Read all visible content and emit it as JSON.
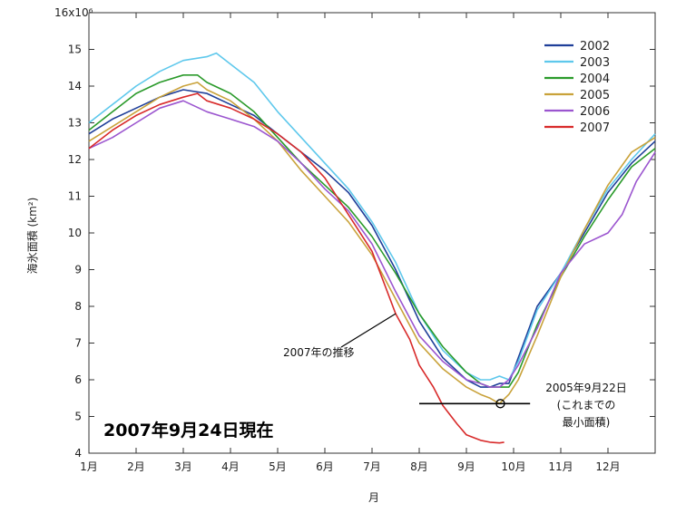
{
  "chart_data": {
    "type": "line",
    "title": "",
    "xlabel": "月",
    "ylabel": "海氷面積 (km²)",
    "y_multiplier_label": "16x10⁶",
    "x_tick_labels": [
      "1月",
      "2月",
      "3月",
      "4月",
      "5月",
      "6月",
      "7月",
      "8月",
      "9月",
      "10月",
      "11月",
      "12月"
    ],
    "y_tick_labels": [
      "4",
      "5",
      "6",
      "7",
      "8",
      "9",
      "10",
      "11",
      "12",
      "13",
      "14",
      "15"
    ],
    "xlim": [
      1,
      13
    ],
    "ylim": [
      4,
      16
    ],
    "grid": false,
    "legend_position": "top-right",
    "series": [
      {
        "name": "2002",
        "color": "#1f3f99",
        "x": [
          1.0,
          1.5,
          2.0,
          2.5,
          3.0,
          3.5,
          4.0,
          4.5,
          5.0,
          5.5,
          6.0,
          6.5,
          7.0,
          7.5,
          8.0,
          8.5,
          9.0,
          9.3,
          9.5,
          9.7,
          9.9,
          10.1,
          10.5,
          11.0,
          11.5,
          12.0,
          12.5,
          13.0
        ],
        "y": [
          12.7,
          13.1,
          13.4,
          13.7,
          13.9,
          13.8,
          13.5,
          13.2,
          12.7,
          12.2,
          11.7,
          11.1,
          10.2,
          9.0,
          7.6,
          6.6,
          6.0,
          5.8,
          5.8,
          5.9,
          5.9,
          6.6,
          8.0,
          8.9,
          10.0,
          11.1,
          11.9,
          12.5
        ]
      },
      {
        "name": "2003",
        "color": "#5ec8ec",
        "x": [
          1.0,
          1.5,
          2.0,
          2.5,
          3.0,
          3.5,
          3.7,
          4.0,
          4.5,
          5.0,
          5.5,
          6.0,
          6.5,
          7.0,
          7.5,
          8.0,
          8.5,
          9.0,
          9.3,
          9.5,
          9.7,
          9.9,
          10.1,
          10.5,
          11.0,
          11.5,
          12.0,
          12.5,
          13.0
        ],
        "y": [
          13.0,
          13.5,
          14.0,
          14.4,
          14.7,
          14.8,
          14.9,
          14.6,
          14.1,
          13.3,
          12.6,
          11.9,
          11.2,
          10.3,
          9.2,
          7.8,
          6.8,
          6.2,
          6.0,
          6.0,
          6.1,
          6.0,
          6.5,
          7.9,
          8.9,
          10.1,
          11.2,
          12.0,
          12.7
        ]
      },
      {
        "name": "2004",
        "color": "#2a9a2a",
        "x": [
          1.0,
          1.5,
          2.0,
          2.5,
          3.0,
          3.3,
          3.5,
          4.0,
          4.5,
          5.0,
          5.5,
          6.0,
          6.5,
          7.0,
          7.5,
          8.0,
          8.5,
          9.0,
          9.3,
          9.5,
          9.7,
          9.9,
          10.1,
          10.5,
          11.0,
          11.5,
          12.0,
          12.5,
          13.0
        ],
        "y": [
          12.8,
          13.3,
          13.8,
          14.1,
          14.3,
          14.3,
          14.1,
          13.8,
          13.3,
          12.6,
          11.9,
          11.3,
          10.7,
          9.9,
          8.9,
          7.8,
          6.9,
          6.2,
          5.9,
          5.8,
          5.8,
          5.8,
          6.2,
          7.5,
          8.8,
          9.9,
          10.9,
          11.8,
          12.3
        ]
      },
      {
        "name": "2005",
        "color": "#c9a23a",
        "x": [
          1.0,
          1.5,
          2.0,
          2.5,
          3.0,
          3.3,
          3.5,
          4.0,
          4.5,
          5.0,
          5.5,
          6.0,
          6.5,
          7.0,
          7.5,
          8.0,
          8.5,
          9.0,
          9.3,
          9.5,
          9.7,
          9.9,
          10.1,
          10.5,
          11.0,
          11.5,
          12.0,
          12.5,
          13.0
        ],
        "y": [
          12.5,
          12.9,
          13.3,
          13.7,
          14.0,
          14.1,
          13.9,
          13.6,
          13.1,
          12.5,
          11.7,
          11.0,
          10.3,
          9.4,
          8.2,
          7.0,
          6.3,
          5.8,
          5.6,
          5.5,
          5.35,
          5.6,
          6.0,
          7.2,
          8.8,
          10.1,
          11.3,
          12.2,
          12.6
        ]
      },
      {
        "name": "2006",
        "color": "#9b55cf",
        "x": [
          1.0,
          1.5,
          2.0,
          2.5,
          3.0,
          3.5,
          4.0,
          4.5,
          5.0,
          5.5,
          6.0,
          6.5,
          7.0,
          7.5,
          8.0,
          8.5,
          9.0,
          9.3,
          9.5,
          9.7,
          9.9,
          10.1,
          10.5,
          11.0,
          11.5,
          12.0,
          12.3,
          12.6,
          13.0
        ],
        "y": [
          12.3,
          12.6,
          13.0,
          13.4,
          13.6,
          13.3,
          13.1,
          12.9,
          12.5,
          11.9,
          11.2,
          10.6,
          9.7,
          8.4,
          7.2,
          6.5,
          6.0,
          5.9,
          5.8,
          5.8,
          6.0,
          6.4,
          7.4,
          8.9,
          9.7,
          10.0,
          10.5,
          11.4,
          12.2
        ]
      },
      {
        "name": "2007",
        "color": "#d82a2a",
        "x": [
          1.0,
          1.5,
          2.0,
          2.5,
          3.0,
          3.3,
          3.5,
          4.0,
          4.5,
          5.0,
          5.5,
          6.0,
          6.5,
          7.0,
          7.5,
          7.8,
          8.0,
          8.3,
          8.5,
          8.8,
          9.0,
          9.3,
          9.5,
          9.7,
          9.8
        ],
        "y": [
          12.3,
          12.8,
          13.2,
          13.5,
          13.7,
          13.8,
          13.6,
          13.4,
          13.1,
          12.7,
          12.2,
          11.5,
          10.5,
          9.5,
          7.8,
          7.1,
          6.4,
          5.8,
          5.3,
          4.8,
          4.5,
          4.35,
          4.3,
          4.28,
          4.3
        ]
      }
    ],
    "annotations": {
      "trend_label": "2007年の推移",
      "min_label_line1": "2005年9月22日",
      "min_label_line2": "(これまでの",
      "min_label_line3": "最小面積)",
      "min_point": {
        "x": 9.72,
        "y": 5.35
      },
      "min_line": {
        "x_start": 8.0,
        "x_end": 10.35,
        "y": 5.35
      },
      "trend_pointer": {
        "x": 7.5,
        "y": 7.8
      },
      "date_stamp": "2007年9月24日現在"
    }
  }
}
